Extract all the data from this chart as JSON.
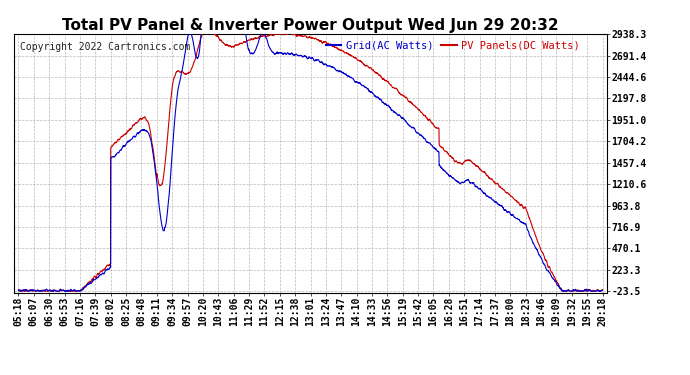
{
  "title": "Total PV Panel & Inverter Power Output Wed Jun 29 20:32",
  "copyright": "Copyright 2022 Cartronics.com",
  "legend_blue": "Grid(AC Watts)",
  "legend_red": "PV Panels(DC Watts)",
  "yticks": [
    2938.3,
    2691.4,
    2444.6,
    2197.8,
    1951.0,
    1704.2,
    1457.4,
    1210.6,
    963.8,
    716.9,
    470.1,
    223.3,
    -23.5
  ],
  "ymin": -23.5,
  "ymax": 2938.3,
  "xtick_labels": [
    "05:18",
    "06:07",
    "06:30",
    "06:53",
    "07:16",
    "07:39",
    "08:02",
    "08:25",
    "08:48",
    "09:11",
    "09:34",
    "09:57",
    "10:20",
    "10:43",
    "11:06",
    "11:29",
    "11:52",
    "12:15",
    "12:38",
    "13:01",
    "13:24",
    "13:47",
    "14:10",
    "14:33",
    "14:56",
    "15:19",
    "15:42",
    "16:05",
    "16:28",
    "16:51",
    "17:14",
    "17:37",
    "18:00",
    "18:23",
    "18:46",
    "19:09",
    "19:32",
    "19:55",
    "20:18"
  ],
  "bg_color": "#ffffff",
  "grid_color": "#aaaaaa",
  "blue_color": "#0000cc",
  "red_color": "#cc0000",
  "title_fontsize": 11,
  "tick_fontsize": 7,
  "copyright_fontsize": 7
}
